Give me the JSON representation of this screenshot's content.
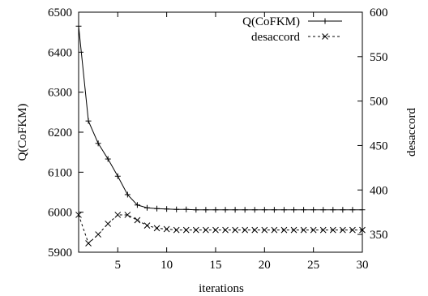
{
  "chart_data": {
    "type": "line",
    "xlabel": "iterations",
    "ylabel_left": "Q(CoFKM)",
    "ylabel_right": "desaccord",
    "xlim": [
      1,
      30
    ],
    "ylim_left": [
      5900,
      6500
    ],
    "ylim_right": [
      330,
      600
    ],
    "x_ticks": [
      5,
      10,
      15,
      20,
      25,
      30
    ],
    "y_ticks_left": [
      5900,
      6000,
      6100,
      6200,
      6300,
      6400,
      6500
    ],
    "y_ticks_right": [
      350,
      400,
      450,
      500,
      550,
      600
    ],
    "grid": false,
    "legend_position": "top-right",
    "series": [
      {
        "name": "Q(CoFKM)",
        "axis": "left",
        "line_style": "solid",
        "marker": "plus",
        "x": [
          1,
          2,
          3,
          4,
          5,
          6,
          7,
          8,
          9,
          10,
          11,
          12,
          13,
          14,
          15,
          16,
          17,
          18,
          19,
          20,
          21,
          22,
          23,
          24,
          25,
          26,
          27,
          28,
          29,
          30
        ],
        "values": [
          6465,
          6228,
          6172,
          6133,
          6090,
          6044,
          6018,
          6011,
          6009,
          6008,
          6007,
          6007,
          6006,
          6006,
          6006,
          6006,
          6006,
          6006,
          6006,
          6006,
          6006,
          6006,
          6006,
          6006,
          6006,
          6006,
          6006,
          6006,
          6006,
          6006
        ]
      },
      {
        "name": "desaccord",
        "axis": "right",
        "line_style": "dashed",
        "marker": "cross",
        "x": [
          1,
          2,
          3,
          4,
          5,
          6,
          7,
          8,
          9,
          10,
          11,
          12,
          13,
          14,
          15,
          16,
          17,
          18,
          19,
          20,
          21,
          22,
          23,
          24,
          25,
          26,
          27,
          28,
          29,
          30
        ],
        "values": [
          372,
          340,
          350,
          362,
          372,
          372,
          366,
          360,
          357,
          356,
          355,
          355,
          355,
          355,
          355,
          355,
          355,
          355,
          355,
          355,
          355,
          355,
          355,
          355,
          355,
          355,
          355,
          355,
          355,
          355
        ]
      }
    ]
  }
}
